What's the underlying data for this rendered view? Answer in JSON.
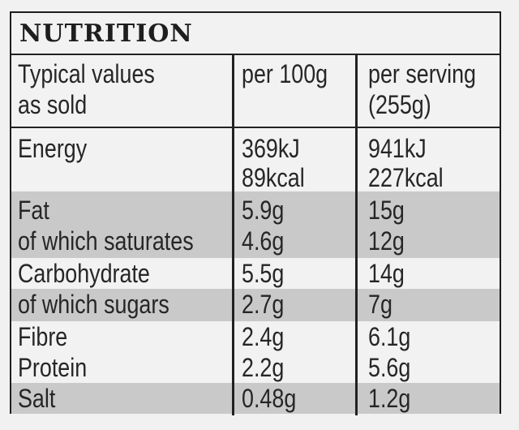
{
  "title": "NUTRITION",
  "header": {
    "col1": [
      "Typical values",
      "as sold"
    ],
    "col2": [
      "per 100g"
    ],
    "col3": [
      "per serving",
      "(255g)"
    ]
  },
  "rows": [
    {
      "name": "Energy",
      "per100": "369kJ",
      "serving": "941kJ"
    },
    {
      "name": "",
      "per100": "89kcal",
      "serving": "227kcal"
    },
    {
      "name": "Fat",
      "per100": "5.9g",
      "serving": "15g"
    },
    {
      "name": "of which saturates",
      "per100": "4.6g",
      "serving": "12g"
    },
    {
      "name": "Carbohydrate",
      "per100": "5.5g",
      "serving": "14g"
    },
    {
      "name": "of which sugars",
      "per100": "2.7g",
      "serving": "7g"
    },
    {
      "name": "Fibre",
      "per100": "2.4g",
      "serving": "6.1g"
    },
    {
      "name": "Protein",
      "per100": "2.2g",
      "serving": "5.6g"
    },
    {
      "name": "Salt",
      "per100": "0.48g",
      "serving": "1.2g"
    }
  ],
  "colors": {
    "shade": "#c9c9c9",
    "ink": "#262626",
    "background": "#f2f2f2"
  }
}
